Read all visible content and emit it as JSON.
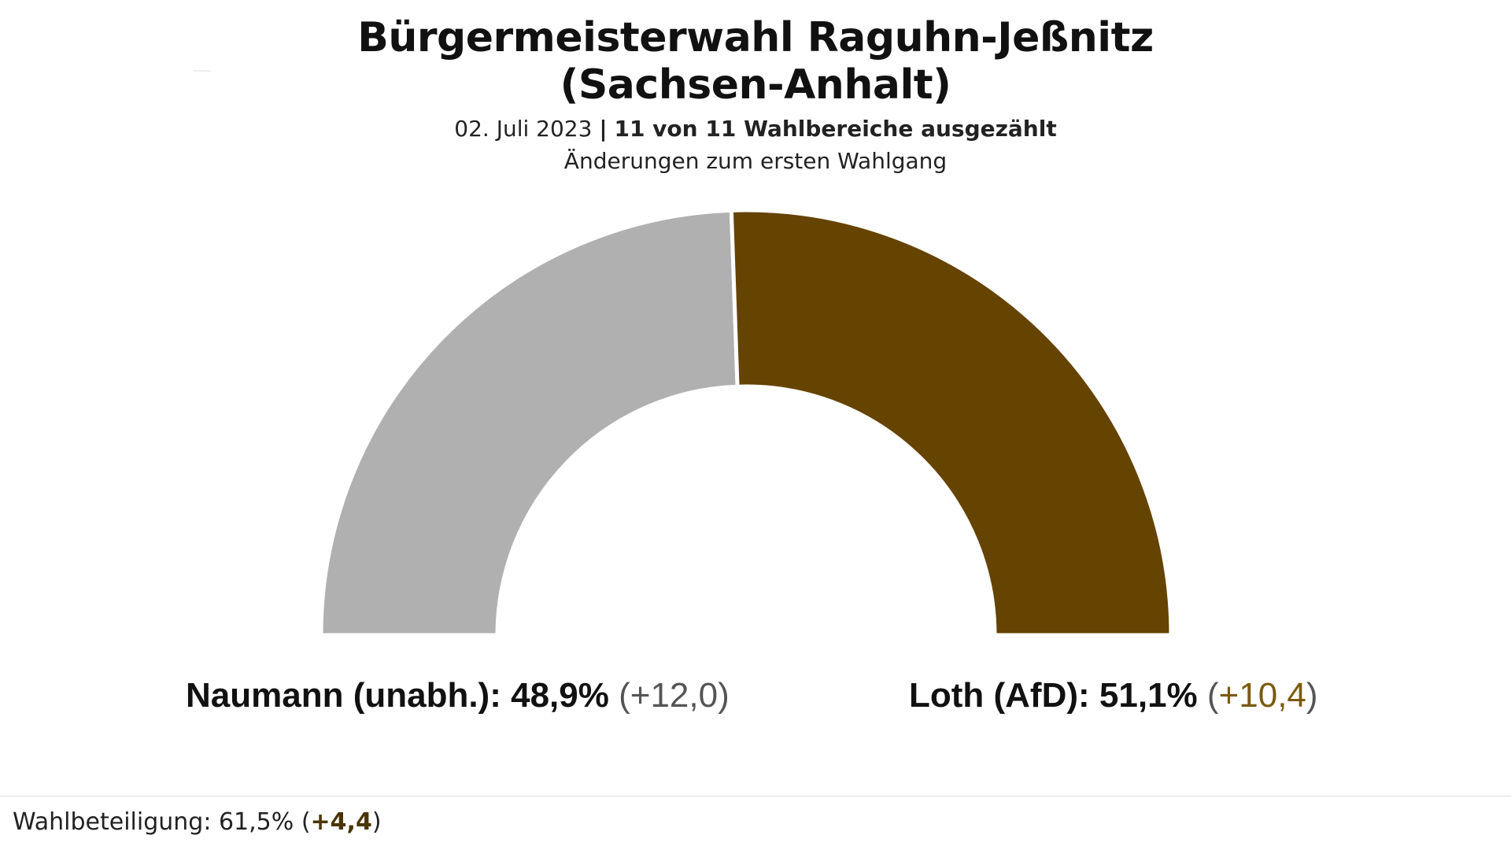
{
  "header": {
    "title_line1": "Bürgermeisterwahl Raguhn-Jeßnitz",
    "title_line2": "(Sachsen-Anhalt)",
    "date": "02. Juli 2023",
    "separator": "|",
    "counted": "11 von 11 Wahlbereiche ausgezählt",
    "note": "Änderungen zum ersten Wahlgang"
  },
  "chart_data": {
    "type": "pie",
    "style": "half-donut",
    "title": "Bürgermeisterwahl Raguhn-Jeßnitz (Sachsen-Anhalt)",
    "unit": "%",
    "slices": [
      {
        "name": "Naumann (unabh.)",
        "value": 48.9,
        "change": 12.0,
        "color": "#b0b0b0"
      },
      {
        "name": "Loth (AfD)",
        "value": 51.1,
        "change": 10.4,
        "color": "#654300"
      }
    ]
  },
  "results": {
    "left": {
      "name": "Naumann (unabh.):",
      "value": "48,9%",
      "open": "(",
      "change": "+12,0",
      "close": ")"
    },
    "right": {
      "name": "Loth (AfD):",
      "value": "51,1%",
      "open": "(",
      "change": "+10,4",
      "close": ")"
    }
  },
  "footer": {
    "turnout_label": "Wahlbeteiligung:",
    "turnout_value": "61,5%",
    "open": "(",
    "turnout_change": "+4,4",
    "close": ")"
  },
  "colors": {
    "naumann": "#b0b0b0",
    "loth": "#654300",
    "change_accent": "#7a5a10"
  }
}
